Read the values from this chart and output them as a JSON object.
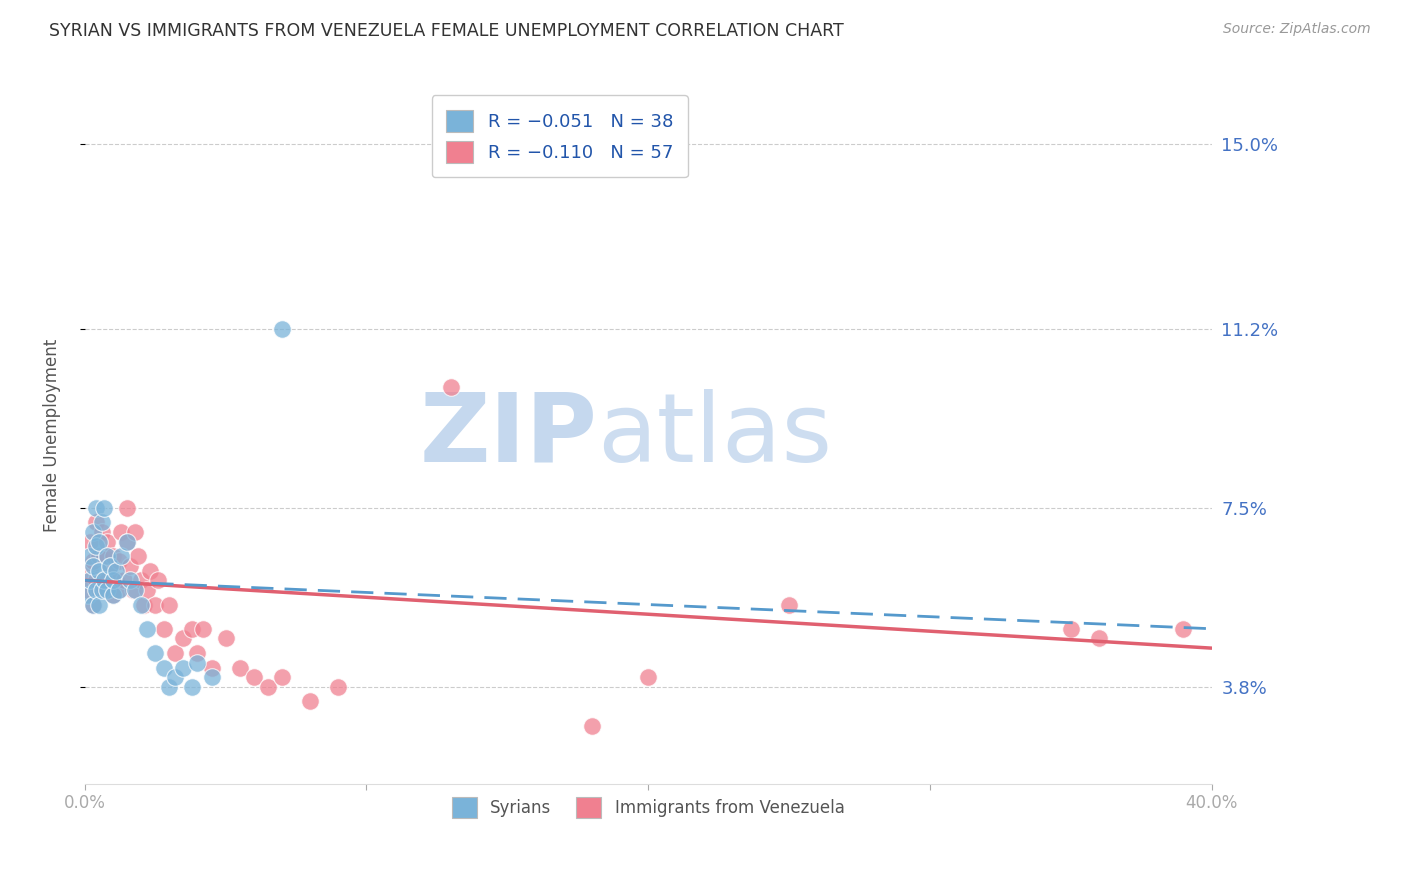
{
  "title": "SYRIAN VS IMMIGRANTS FROM VENEZUELA FEMALE UNEMPLOYMENT CORRELATION CHART",
  "source": "Source: ZipAtlas.com",
  "ylabel": "Female Unemployment",
  "yticks": [
    0.038,
    0.075,
    0.112,
    0.15
  ],
  "ytick_labels": [
    "3.8%",
    "7.5%",
    "11.2%",
    "15.0%"
  ],
  "xmin": 0.0,
  "xmax": 0.4,
  "ymin": 0.018,
  "ymax": 0.162,
  "syrian_color": "#7ab3d9",
  "venezuela_color": "#f08090",
  "syrian_line_color": "#5599cc",
  "venezuela_line_color": "#e06070",
  "bg_color": "#ffffff",
  "grid_color": "#c0c0c0",
  "title_color": "#333333",
  "right_axis_color": "#4472c4",
  "watermark_zip_color": "#c5d8ee",
  "watermark_atlas_color": "#c5d8ee",
  "syrians_x": [
    0.001,
    0.002,
    0.002,
    0.003,
    0.003,
    0.003,
    0.004,
    0.004,
    0.004,
    0.005,
    0.005,
    0.005,
    0.006,
    0.006,
    0.007,
    0.007,
    0.008,
    0.008,
    0.009,
    0.01,
    0.01,
    0.011,
    0.012,
    0.013,
    0.015,
    0.016,
    0.018,
    0.02,
    0.022,
    0.025,
    0.028,
    0.03,
    0.032,
    0.035,
    0.038,
    0.04,
    0.045,
    0.07
  ],
  "syrians_y": [
    0.057,
    0.06,
    0.065,
    0.055,
    0.063,
    0.07,
    0.058,
    0.067,
    0.075,
    0.055,
    0.062,
    0.068,
    0.058,
    0.072,
    0.06,
    0.075,
    0.058,
    0.065,
    0.063,
    0.057,
    0.06,
    0.062,
    0.058,
    0.065,
    0.068,
    0.06,
    0.058,
    0.055,
    0.05,
    0.045,
    0.042,
    0.038,
    0.04,
    0.042,
    0.038,
    0.043,
    0.04,
    0.112
  ],
  "venezuela_x": [
    0.001,
    0.002,
    0.002,
    0.003,
    0.003,
    0.004,
    0.004,
    0.005,
    0.005,
    0.006,
    0.006,
    0.007,
    0.007,
    0.008,
    0.008,
    0.009,
    0.01,
    0.01,
    0.011,
    0.012,
    0.012,
    0.013,
    0.014,
    0.015,
    0.015,
    0.016,
    0.017,
    0.018,
    0.019,
    0.02,
    0.021,
    0.022,
    0.023,
    0.025,
    0.026,
    0.028,
    0.03,
    0.032,
    0.035,
    0.038,
    0.04,
    0.042,
    0.045,
    0.05,
    0.055,
    0.06,
    0.065,
    0.07,
    0.08,
    0.09,
    0.13,
    0.18,
    0.2,
    0.25,
    0.35,
    0.36,
    0.39
  ],
  "venezuela_y": [
    0.058,
    0.062,
    0.068,
    0.055,
    0.064,
    0.06,
    0.072,
    0.058,
    0.065,
    0.06,
    0.07,
    0.058,
    0.065,
    0.06,
    0.068,
    0.063,
    0.057,
    0.065,
    0.06,
    0.058,
    0.064,
    0.07,
    0.06,
    0.075,
    0.068,
    0.063,
    0.058,
    0.07,
    0.065,
    0.06,
    0.055,
    0.058,
    0.062,
    0.055,
    0.06,
    0.05,
    0.055,
    0.045,
    0.048,
    0.05,
    0.045,
    0.05,
    0.042,
    0.048,
    0.042,
    0.04,
    0.038,
    0.04,
    0.035,
    0.038,
    0.1,
    0.03,
    0.04,
    0.055,
    0.05,
    0.048,
    0.05
  ],
  "syrian_trend_x": [
    0.0,
    0.4
  ],
  "syrian_trend_y": [
    0.06,
    0.05
  ],
  "venezuela_trend_x": [
    0.0,
    0.4
  ],
  "venezuela_trend_y": [
    0.06,
    0.046
  ]
}
